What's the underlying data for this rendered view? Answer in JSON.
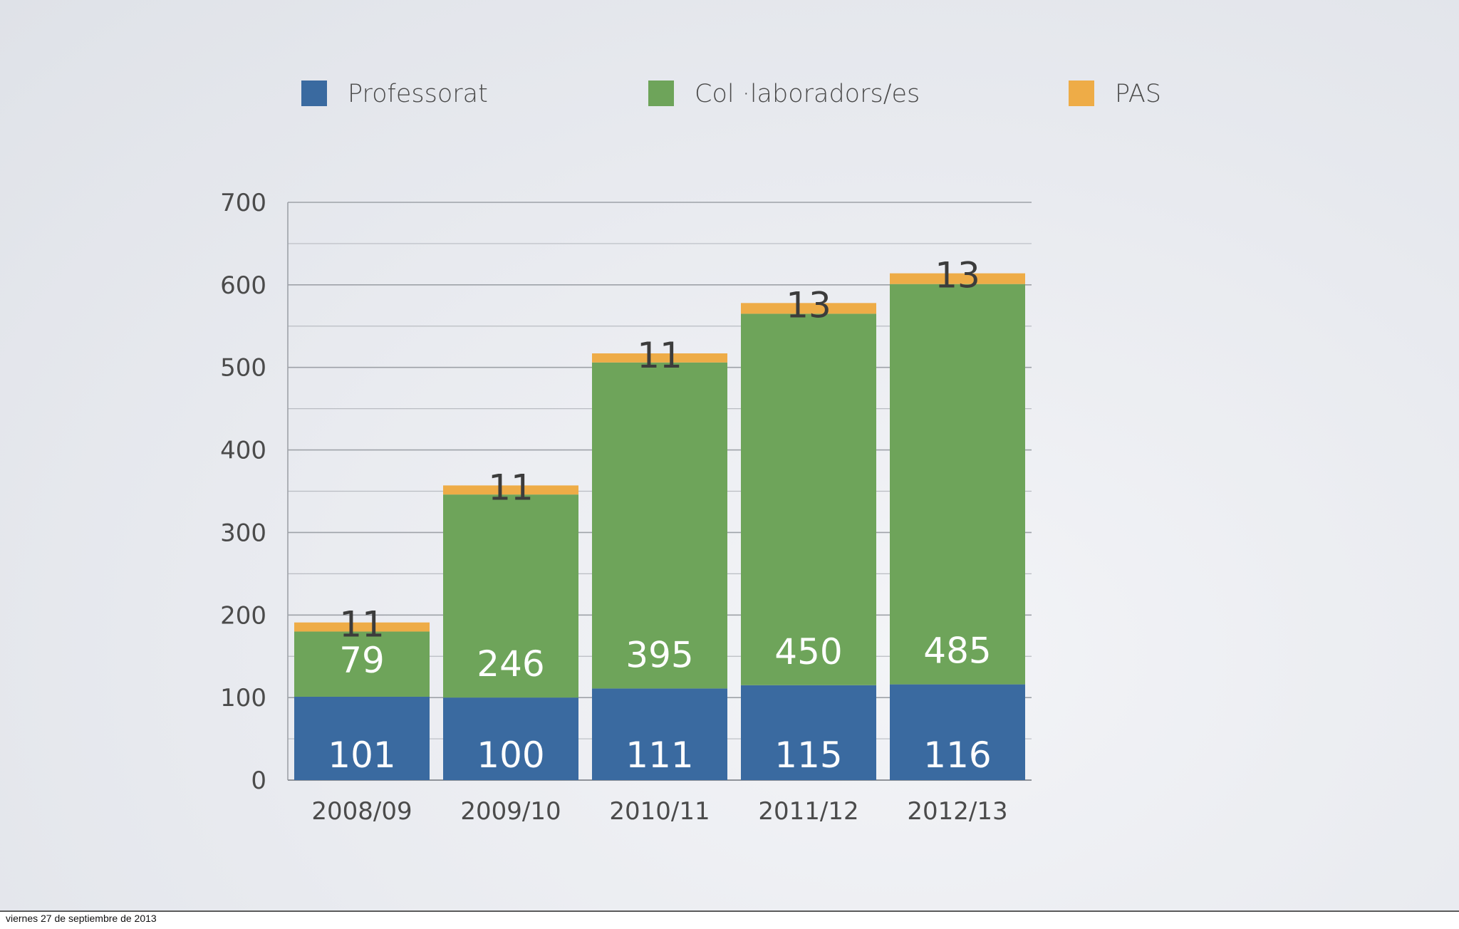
{
  "footer": {
    "date_text": "viernes 27 de septiembre de 2013"
  },
  "chart_data": {
    "type": "bar",
    "stacked": true,
    "title": "",
    "xlabel": "",
    "ylabel": "",
    "ylim": [
      0,
      700
    ],
    "yticks": [
      0,
      100,
      200,
      300,
      400,
      500,
      600,
      700
    ],
    "grid": true,
    "legend_position": "top",
    "categories": [
      "2008/09",
      "2009/10",
      "2010/11",
      "2011/12",
      "2012/13"
    ],
    "series": [
      {
        "name": "Professorat",
        "color": "#3a6aa0",
        "values": [
          101,
          100,
          111,
          115,
          116
        ],
        "labels": [
          "101",
          "100",
          "111",
          "115",
          "116"
        ]
      },
      {
        "name": "Col·laboradors/es",
        "legend_text": "Col ·laboradors/es",
        "color": "#6ea45a",
        "values": [
          79,
          246,
          395,
          450,
          485
        ],
        "labels": [
          "79",
          "246",
          "395",
          "450",
          "485"
        ]
      },
      {
        "name": "PAS",
        "color": "#eeac47",
        "values": [
          11,
          11,
          11,
          13,
          13
        ],
        "labels": [
          "11",
          "11",
          "11",
          "13",
          "13"
        ]
      }
    ]
  }
}
